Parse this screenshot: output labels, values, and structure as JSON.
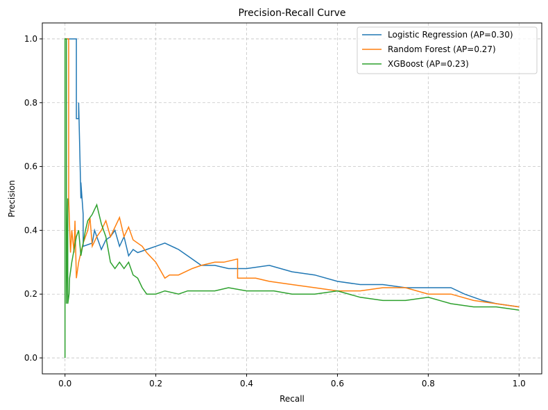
{
  "chart_data": {
    "type": "line",
    "title": "Precision-Recall Curve",
    "xlabel": "Recall",
    "ylabel": "Precision",
    "xlim": [
      -0.05,
      1.05
    ],
    "ylim": [
      -0.05,
      1.05
    ],
    "xticks": [
      0.0,
      0.2,
      0.4,
      0.6,
      0.8,
      1.0
    ],
    "yticks": [
      0.0,
      0.2,
      0.4,
      0.6,
      0.8,
      1.0
    ],
    "xtick_labels": [
      "0.0",
      "0.2",
      "0.4",
      "0.6",
      "0.8",
      "1.0"
    ],
    "ytick_labels": [
      "0.0",
      "0.2",
      "0.4",
      "0.6",
      "0.8",
      "1.0"
    ],
    "grid": true,
    "legend_position": "top-right",
    "series": [
      {
        "name": "Logistic Regression (AP=0.30)",
        "color": "#1f77b4",
        "x": [
          0.0,
          0.0,
          0.025,
          0.025,
          0.03,
          0.03,
          0.035,
          0.035,
          0.04,
          0.04,
          0.06,
          0.065,
          0.08,
          0.09,
          0.1,
          0.11,
          0.12,
          0.13,
          0.14,
          0.15,
          0.16,
          0.18,
          0.2,
          0.22,
          0.25,
          0.27,
          0.3,
          0.33,
          0.36,
          0.4,
          0.45,
          0.5,
          0.55,
          0.6,
          0.65,
          0.7,
          0.75,
          0.8,
          0.85,
          0.88,
          0.92,
          0.95,
          1.0
        ],
        "y": [
          1.0,
          1.0,
          1.0,
          0.75,
          0.75,
          0.8,
          0.5,
          0.55,
          0.45,
          0.35,
          0.36,
          0.4,
          0.34,
          0.37,
          0.38,
          0.4,
          0.35,
          0.38,
          0.32,
          0.34,
          0.33,
          0.34,
          0.35,
          0.36,
          0.34,
          0.32,
          0.29,
          0.29,
          0.28,
          0.28,
          0.29,
          0.27,
          0.26,
          0.24,
          0.23,
          0.23,
          0.22,
          0.22,
          0.22,
          0.2,
          0.18,
          0.17,
          0.16
        ]
      },
      {
        "name": "Random Forest (AP=0.27)",
        "color": "#ff7f0e",
        "x": [
          0.0,
          0.008,
          0.008,
          0.012,
          0.015,
          0.02,
          0.022,
          0.025,
          0.03,
          0.035,
          0.04,
          0.05,
          0.055,
          0.06,
          0.07,
          0.08,
          0.09,
          0.1,
          0.12,
          0.13,
          0.14,
          0.15,
          0.17,
          0.18,
          0.2,
          0.22,
          0.23,
          0.25,
          0.28,
          0.3,
          0.33,
          0.35,
          0.38,
          0.38,
          0.42,
          0.45,
          0.5,
          0.55,
          0.6,
          0.65,
          0.7,
          0.75,
          0.8,
          0.85,
          0.9,
          0.95,
          1.0
        ],
        "y": [
          1.0,
          1.0,
          0.5,
          0.33,
          0.4,
          0.33,
          0.43,
          0.25,
          0.3,
          0.33,
          0.36,
          0.4,
          0.44,
          0.35,
          0.38,
          0.4,
          0.43,
          0.38,
          0.44,
          0.38,
          0.41,
          0.37,
          0.35,
          0.33,
          0.3,
          0.25,
          0.26,
          0.26,
          0.28,
          0.29,
          0.3,
          0.3,
          0.31,
          0.25,
          0.25,
          0.24,
          0.23,
          0.22,
          0.21,
          0.21,
          0.22,
          0.22,
          0.2,
          0.2,
          0.18,
          0.17,
          0.16
        ]
      },
      {
        "name": "XGBoost (AP=0.23)",
        "color": "#2ca02c",
        "x": [
          0.0,
          0.0,
          0.003,
          0.003,
          0.006,
          0.006,
          0.009,
          0.01,
          0.015,
          0.02,
          0.025,
          0.03,
          0.035,
          0.04,
          0.045,
          0.05,
          0.06,
          0.07,
          0.08,
          0.09,
          0.1,
          0.11,
          0.12,
          0.13,
          0.14,
          0.15,
          0.16,
          0.17,
          0.18,
          0.19,
          0.2,
          0.22,
          0.25,
          0.27,
          0.3,
          0.33,
          0.36,
          0.4,
          0.43,
          0.46,
          0.5,
          0.55,
          0.6,
          0.65,
          0.7,
          0.75,
          0.8,
          0.85,
          0.9,
          0.95,
          1.0
        ],
        "y": [
          0.0,
          1.0,
          1.0,
          0.17,
          0.5,
          0.17,
          0.2,
          0.25,
          0.3,
          0.34,
          0.38,
          0.4,
          0.32,
          0.36,
          0.4,
          0.43,
          0.45,
          0.48,
          0.42,
          0.38,
          0.3,
          0.28,
          0.3,
          0.28,
          0.3,
          0.26,
          0.25,
          0.22,
          0.2,
          0.2,
          0.2,
          0.21,
          0.2,
          0.21,
          0.21,
          0.21,
          0.22,
          0.21,
          0.21,
          0.21,
          0.2,
          0.2,
          0.21,
          0.19,
          0.18,
          0.18,
          0.19,
          0.17,
          0.16,
          0.16,
          0.15
        ]
      }
    ]
  }
}
